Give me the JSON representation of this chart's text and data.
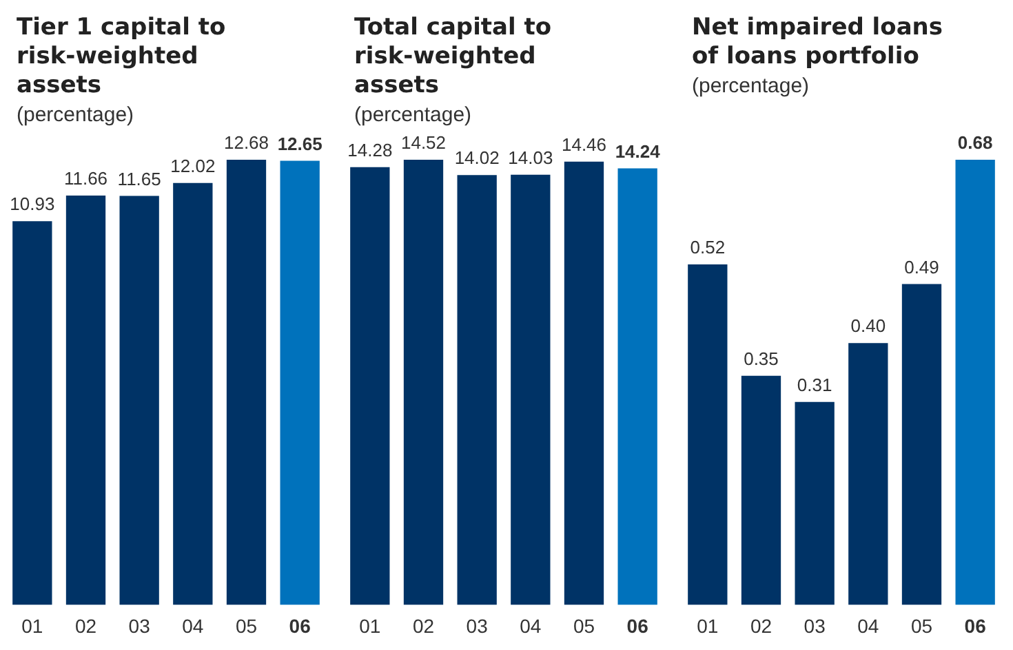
{
  "chart_data": [
    {
      "type": "bar",
      "title": "Tier 1 capital to risk-weighted assets",
      "subtitle": "(percentage)",
      "categories": [
        "01",
        "02",
        "03",
        "04",
        "05",
        "06"
      ],
      "values": [
        10.93,
        11.66,
        11.65,
        12.02,
        12.68,
        12.65
      ],
      "colors": [
        "#003366",
        "#003366",
        "#003366",
        "#003366",
        "#003366",
        "#0072bc"
      ],
      "data_labels": true,
      "grid": false,
      "legend": false,
      "tick_labels": "x"
    },
    {
      "type": "bar",
      "title": "Total capital to risk-weighted assets",
      "subtitle": "(percentage)",
      "categories": [
        "01",
        "02",
        "03",
        "04",
        "05",
        "06"
      ],
      "values": [
        14.28,
        14.52,
        14.02,
        14.03,
        14.46,
        14.24
      ],
      "colors": [
        "#003366",
        "#003366",
        "#003366",
        "#003366",
        "#003366",
        "#0072bc"
      ],
      "data_labels": true,
      "grid": false,
      "legend": false,
      "tick_labels": "x"
    },
    {
      "type": "bar",
      "title": "Net impaired loans of loans portfolio",
      "subtitle": "(percentage)",
      "categories": [
        "01",
        "02",
        "03",
        "04",
        "05",
        "06"
      ],
      "values": [
        0.52,
        0.35,
        0.31,
        0.4,
        0.49,
        0.68
      ],
      "value_labels": [
        "0.52",
        "0.35",
        "0.31",
        "0.40",
        "0.49",
        "0.68"
      ],
      "colors": [
        "#003366",
        "#003366",
        "#003366",
        "#003366",
        "#003366",
        "#0072bc"
      ],
      "grid": false,
      "legend": false,
      "tick_labels": "x"
    }
  ]
}
